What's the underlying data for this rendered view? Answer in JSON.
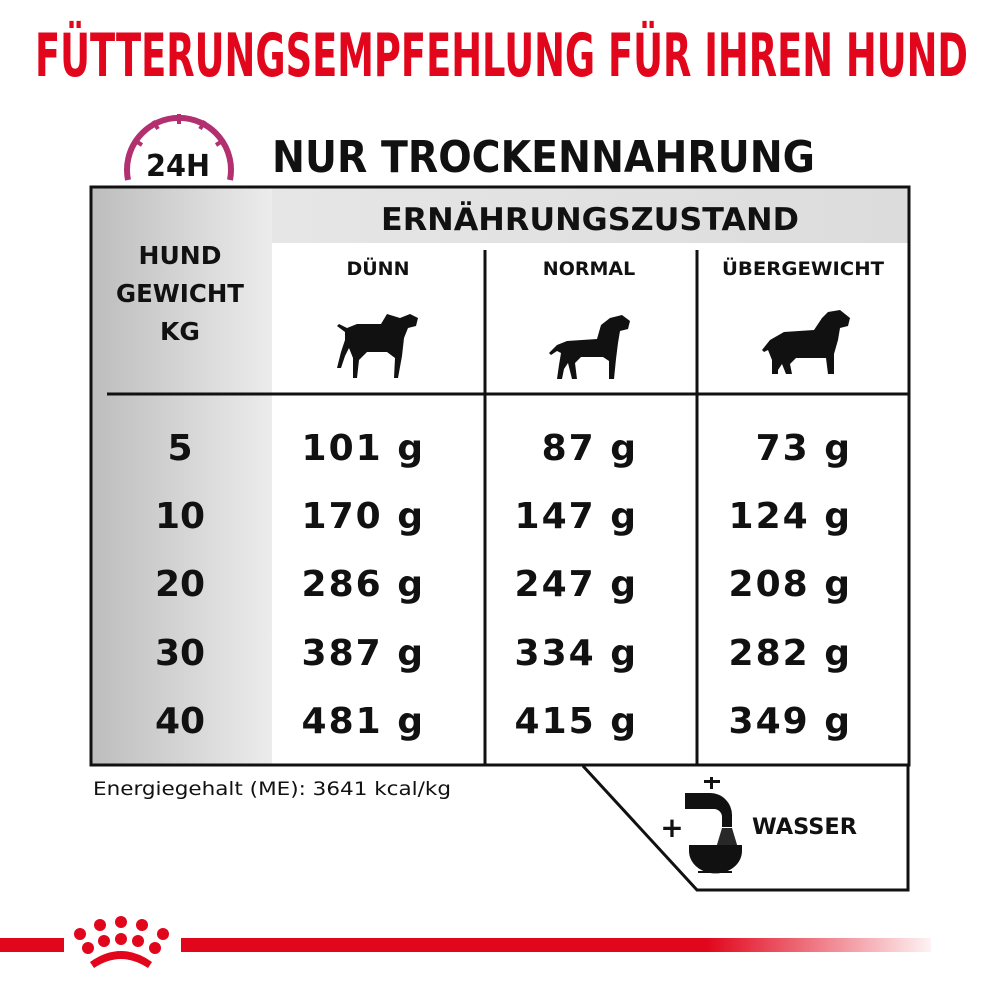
{
  "title": "FÜTTERUNGSEMPFEHLUNG FÜR IHREN HUND",
  "clock_icon_label": "24H",
  "subtitle": "NUR TROCKENNAHRUNG",
  "table": {
    "group_header": "ERNÄHRUNGSZUSTAND",
    "row_header": [
      "HUND",
      "GEWICHT",
      "KG"
    ],
    "columns": [
      "DÜNN",
      "NORMAL",
      "ÜBERGEWICHT"
    ],
    "rows": [
      {
        "weight": "5",
        "values": [
          "101 g",
          "87 g",
          "73 g"
        ]
      },
      {
        "weight": "10",
        "values": [
          "170 g",
          "147 g",
          "124 g"
        ]
      },
      {
        "weight": "20",
        "values": [
          "286 g",
          "247 g",
          "208 g"
        ]
      },
      {
        "weight": "30",
        "values": [
          "387 g",
          "334 g",
          "282 g"
        ]
      },
      {
        "weight": "40",
        "values": [
          "481 g",
          "415 g",
          "349 g"
        ]
      }
    ]
  },
  "energy_note": "Energiegehalt (ME): 3641 kcal/kg",
  "water": {
    "plus": "+",
    "label": "WASSER"
  },
  "colors": {
    "brand_red": "#e1061b",
    "clock_magenta": "#b2306f"
  },
  "icons": [
    "clock-icon",
    "dog-thin-icon",
    "dog-normal-icon",
    "dog-overweight-icon",
    "water-tap-bowl-icon",
    "royal-canin-crown-logo"
  ]
}
